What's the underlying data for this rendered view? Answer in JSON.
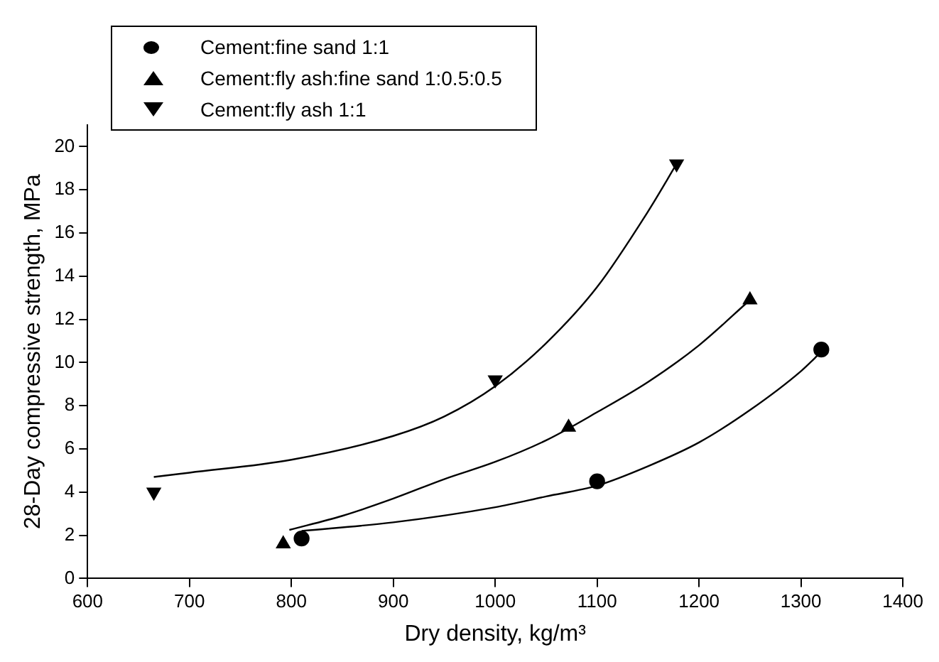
{
  "chart_data": {
    "type": "scatter",
    "xlabel": "Dry density, kg/m³",
    "ylabel": "28-Day compressive strength, MPa",
    "xlim": [
      600,
      1400
    ],
    "xticks": [
      600,
      700,
      800,
      900,
      1000,
      1100,
      1200,
      1300,
      1400
    ],
    "ylim": [
      0,
      21
    ],
    "yticks": [
      0,
      2,
      4,
      6,
      8,
      10,
      12,
      14,
      16,
      18,
      20
    ],
    "grid": false,
    "legend": "top left",
    "series": [
      {
        "name": "Cement:fine sand 1:1",
        "color": "#000000",
        "marker": "circle",
        "x": [
          810,
          1100,
          1320
        ],
        "values": [
          1.85,
          4.5,
          10.6
        ]
      },
      {
        "name": "Cement:fly ash:fine sand 1:0.5:0.5",
        "color": "#000000",
        "marker": "triangle",
        "x": [
          792,
          1072,
          1250
        ],
        "values": [
          1.6,
          7.0,
          12.9
        ]
      },
      {
        "name": "Cement:fly ash 1:1",
        "color": "#000000",
        "marker": "triangle-down",
        "x": [
          665,
          1000,
          1178
        ],
        "values": [
          4.0,
          9.2,
          19.2
        ]
      },
      {
        "type": "line",
        "color": "#000000",
        "marker": "none",
        "line_style": "solid",
        "x": [
          810,
          900,
          1000,
          1050,
          1100,
          1150,
          1200,
          1250,
          1300,
          1320
        ],
        "values": [
          2.2,
          2.6,
          3.3,
          3.8,
          4.3,
          5.2,
          6.3,
          7.8,
          9.6,
          10.5
        ]
      },
      {
        "type": "line",
        "color": "#000000",
        "marker": "none",
        "line_style": "solid",
        "x": [
          798,
          850,
          900,
          950,
          1000,
          1050,
          1100,
          1150,
          1200,
          1250
        ],
        "values": [
          2.25,
          2.9,
          3.7,
          4.6,
          5.4,
          6.4,
          7.7,
          9.1,
          10.8,
          12.9
        ]
      },
      {
        "type": "line",
        "color": "#000000",
        "marker": "none",
        "line_style": "solid",
        "x": [
          665,
          700,
          800,
          900,
          950,
          1000,
          1050,
          1100,
          1150,
          1178
        ],
        "values": [
          4.7,
          4.9,
          5.5,
          6.6,
          7.5,
          8.9,
          10.9,
          13.5,
          17,
          19.2
        ]
      }
    ]
  }
}
